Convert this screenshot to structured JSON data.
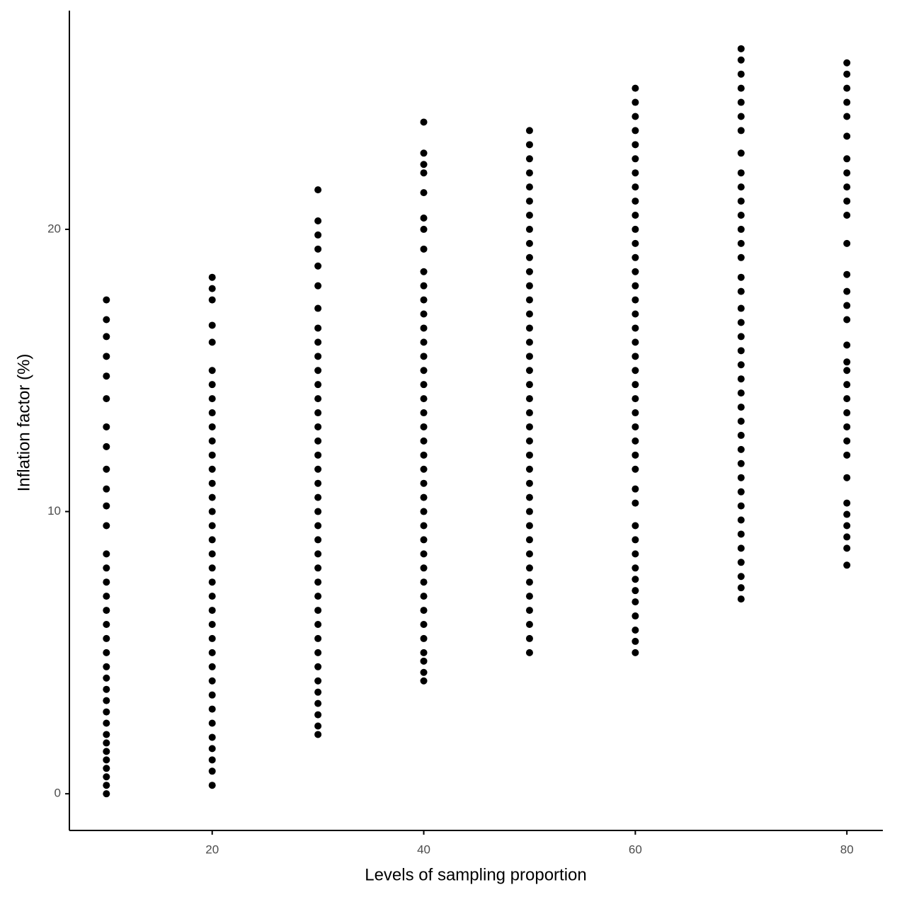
{
  "chart_data": {
    "type": "scatter",
    "xlabel": "Levels of sampling proportion",
    "ylabel": "Inflation factor (%)",
    "color": "#000000",
    "xlim": [
      6.5,
      83.4
    ],
    "ylim": [
      -1.3,
      27.75
    ],
    "xticks": [
      20,
      40,
      60,
      80
    ],
    "yticks": [
      0,
      10,
      20
    ],
    "grid": false,
    "groups": [
      {
        "x": 10,
        "values": [
          0,
          0.3,
          0.6,
          0.9,
          1.2,
          1.5,
          1.8,
          2.1,
          2.5,
          2.9,
          3.3,
          3.7,
          4.1,
          4.5,
          5,
          5.5,
          6,
          6.5,
          7,
          7.5,
          8,
          8.5,
          9.5,
          10.2,
          10.8,
          11.5,
          12.3,
          13,
          14,
          14.8,
          15.5,
          16.2,
          16.8,
          17.5
        ]
      },
      {
        "x": 20,
        "values": [
          0.3,
          0.8,
          1.2,
          1.6,
          2,
          2.5,
          3,
          3.5,
          4,
          4.5,
          5,
          5.5,
          6,
          6.5,
          7,
          7.5,
          8,
          8.5,
          9,
          9.5,
          10,
          10.5,
          11,
          11.5,
          12,
          12.5,
          13,
          13.5,
          14,
          14.5,
          15,
          16,
          16.6,
          17.5,
          17.9,
          18.3
        ]
      },
      {
        "x": 30,
        "values": [
          2.1,
          2.4,
          2.8,
          3.2,
          3.6,
          4,
          4.5,
          5,
          5.5,
          6,
          6.5,
          7,
          7.5,
          8,
          8.5,
          9,
          9.5,
          10,
          10.5,
          11,
          11.5,
          12,
          12.5,
          13,
          13.5,
          14,
          14.5,
          15,
          15.5,
          16,
          16.5,
          17.2,
          18,
          18.7,
          19.3,
          19.8,
          20.3,
          21.4
        ]
      },
      {
        "x": 40,
        "values": [
          4,
          4.3,
          4.7,
          5,
          5.5,
          6,
          6.5,
          7,
          7.5,
          8,
          8.5,
          9,
          9.5,
          10,
          10.5,
          11,
          11.5,
          12,
          12.5,
          13,
          13.5,
          14,
          14.5,
          15,
          15.5,
          16,
          16.5,
          17,
          17.5,
          18,
          18.5,
          19.3,
          20,
          20.4,
          21.3,
          22,
          22.3,
          22.7,
          23.8
        ]
      },
      {
        "x": 50,
        "values": [
          5,
          5.5,
          6,
          6.5,
          7,
          7.5,
          8,
          8.5,
          9,
          9.5,
          10,
          10.5,
          11,
          11.5,
          12,
          12.5,
          13,
          13.5,
          14,
          14.5,
          15,
          15.5,
          16,
          16.5,
          17,
          17.5,
          18,
          18.5,
          19,
          19.5,
          20,
          20.5,
          21,
          21.5,
          22,
          22.5,
          23,
          23.5
        ]
      },
      {
        "x": 60,
        "values": [
          5,
          5.4,
          5.8,
          6.3,
          6.8,
          7.2,
          7.6,
          8,
          8.5,
          9,
          9.5,
          10.3,
          10.8,
          11.5,
          12,
          12.5,
          13,
          13.5,
          14,
          14.5,
          15,
          15.5,
          16,
          16.5,
          17,
          17.5,
          18,
          18.5,
          19,
          19.5,
          20,
          20.5,
          21,
          21.5,
          22,
          22.5,
          23,
          23.5,
          24,
          24.5,
          25
        ]
      },
      {
        "x": 70,
        "values": [
          6.9,
          7.3,
          7.7,
          8.2,
          8.7,
          9.2,
          9.7,
          10.2,
          10.7,
          11.2,
          11.7,
          12.2,
          12.7,
          13.2,
          13.7,
          14.2,
          14.7,
          15.2,
          15.7,
          16.2,
          16.7,
          17.2,
          17.8,
          18.3,
          19,
          19.5,
          20,
          20.5,
          21,
          21.5,
          22,
          22.7,
          23.5,
          24,
          24.5,
          25,
          25.5,
          26,
          26.4
        ]
      },
      {
        "x": 80,
        "values": [
          8.1,
          8.7,
          9.1,
          9.5,
          9.9,
          10.3,
          11.2,
          12,
          12.5,
          13,
          13.5,
          14,
          14.5,
          15,
          15.3,
          15.9,
          16.8,
          17.3,
          17.8,
          18.4,
          19.5,
          20.5,
          21,
          21.5,
          22,
          22.5,
          23.3,
          24,
          24.5,
          25,
          25.5,
          25.9
        ]
      }
    ]
  }
}
